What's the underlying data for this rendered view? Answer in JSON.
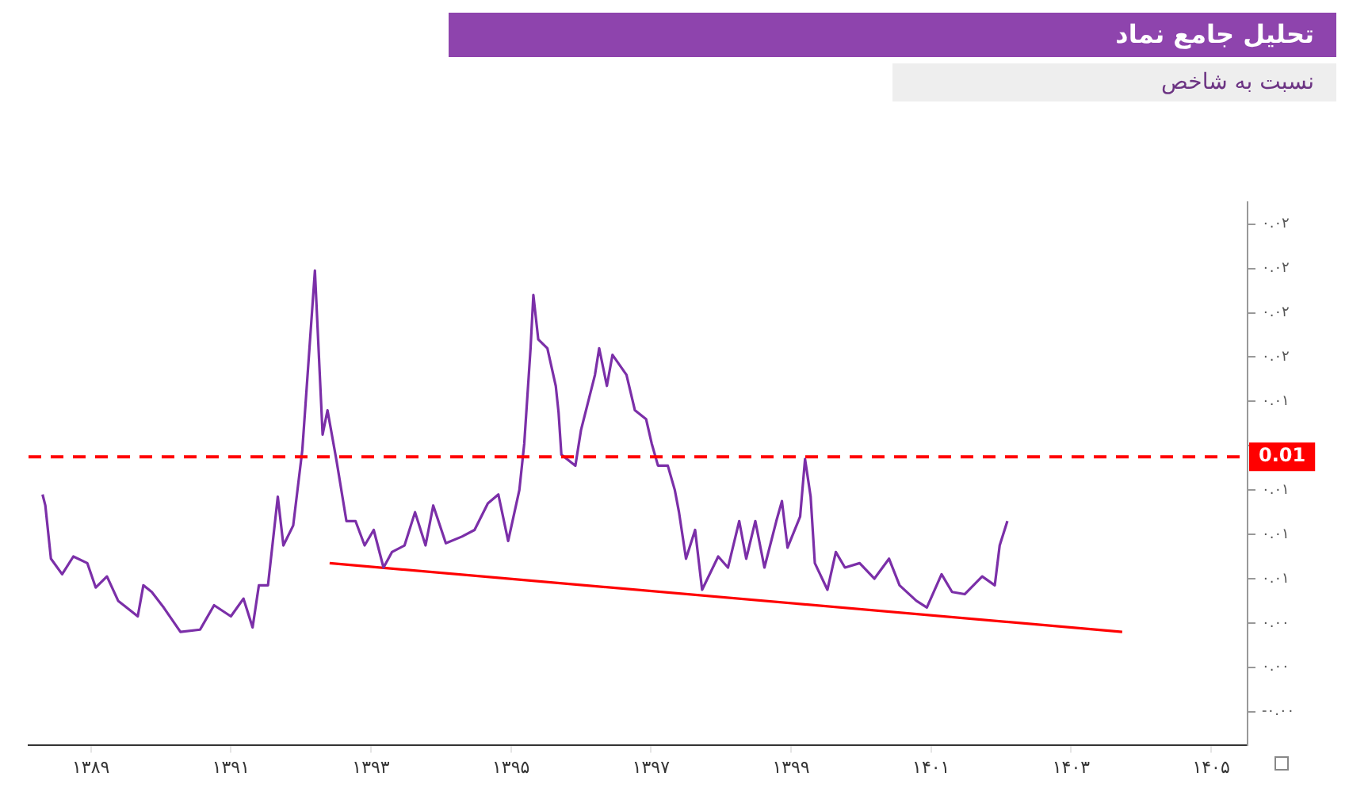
{
  "chart_data": {
    "type": "line",
    "title": "تحلیل جامع نماد",
    "subtitle": "نسبت به شاخص",
    "xlim": [
      1388.11,
      1405.52
    ],
    "xticks": [
      {
        "value": 1389,
        "label": "۱۳۸۹"
      },
      {
        "value": 1391,
        "label": "۱۳۹۱"
      },
      {
        "value": 1393,
        "label": "۱۳۹۳"
      },
      {
        "value": 1395,
        "label": "۱۳۹۵"
      },
      {
        "value": 1397,
        "label": "۱۳۹۷"
      },
      {
        "value": 1399,
        "label": "۱۳۹۹"
      },
      {
        "value": 1401,
        "label": "۱۴۰۱"
      },
      {
        "value": 1403,
        "label": "۱۴۰۳"
      },
      {
        "value": 1405,
        "label": "۱۴۰۵"
      }
    ],
    "ylim": [
      -0.0025,
      0.022
    ],
    "yticks": [
      {
        "value": -0.001,
        "label": "-۰.۰۰"
      },
      {
        "value": 0.001,
        "label": "۰.۰۰"
      },
      {
        "value": 0.003,
        "label": "۰.۰۰"
      },
      {
        "value": 0.005,
        "label": "۰.۰۱"
      },
      {
        "value": 0.007,
        "label": "۰.۰۱"
      },
      {
        "value": 0.009,
        "label": "۰.۰۱"
      },
      {
        "value": 0.011,
        "label": null
      },
      {
        "value": 0.013,
        "label": "۰.۰۱"
      },
      {
        "value": 0.015,
        "label": "۰.۰۲"
      },
      {
        "value": 0.017,
        "label": "۰.۰۲"
      },
      {
        "value": 0.019,
        "label": "۰.۰۲"
      },
      {
        "value": 0.021,
        "label": "۰.۰۲"
      }
    ],
    "grid": false,
    "legend": false,
    "marker": "none",
    "line_style": "solid",
    "ref_lines": [
      {
        "axis": "y",
        "value": 0.0105,
        "label": "0.01",
        "color": "#ff0000",
        "line_style": "dashed"
      }
    ],
    "series": [
      {
        "color": "#7b2fa8",
        "x": [
          1388.31,
          1388.35,
          1388.43,
          1388.59,
          1388.75,
          1388.95,
          1389.07,
          1389.23,
          1389.39,
          1389.67,
          1389.75,
          1389.87,
          1390.04,
          1390.28,
          1390.56,
          1390.76,
          1391.0,
          1391.18,
          1391.31,
          1391.4,
          1391.53,
          1391.67,
          1391.75,
          1391.89,
          1392.02,
          1392.2,
          1392.31,
          1392.38,
          1392.51,
          1392.65,
          1392.78,
          1392.91,
          1393.04,
          1393.18,
          1393.3,
          1393.48,
          1393.63,
          1393.78,
          1393.89,
          1394.07,
          1394.3,
          1394.48,
          1394.67,
          1394.82,
          1394.96,
          1395.12,
          1395.19,
          1395.28,
          1395.32,
          1395.39,
          1395.52,
          1395.64,
          1395.68,
          1395.72,
          1395.92,
          1396.0,
          1396.2,
          1396.26,
          1396.37,
          1396.45,
          1396.65,
          1396.77,
          1396.93,
          1397.01,
          1397.1,
          1397.24,
          1397.34,
          1397.4,
          1397.5,
          1397.63,
          1397.73,
          1397.96,
          1398.1,
          1398.26,
          1398.36,
          1398.49,
          1398.62,
          1398.79,
          1398.87,
          1398.95,
          1399.13,
          1399.2,
          1399.28,
          1399.34,
          1399.52,
          1399.64,
          1399.77,
          1399.98,
          1400.19,
          1400.4,
          1400.55,
          1400.79,
          1400.94,
          1401.15,
          1401.3,
          1401.48,
          1401.73,
          1401.91,
          1401.98,
          1402.09
        ],
        "values": [
          0.0088,
          0.0083,
          0.0059,
          0.0052,
          0.006,
          0.0057,
          0.0046,
          0.0051,
          0.004,
          0.0033,
          0.0047,
          0.0044,
          0.0037,
          0.0026,
          0.0027,
          0.0038,
          0.0033,
          0.0041,
          0.0028,
          0.0047,
          0.0047,
          0.0087,
          0.0065,
          0.0074,
          0.0108,
          0.0189,
          0.0115,
          0.0126,
          0.0103,
          0.0076,
          0.0076,
          0.0065,
          0.0072,
          0.0055,
          0.0062,
          0.0065,
          0.008,
          0.0065,
          0.0083,
          0.0066,
          0.0069,
          0.0072,
          0.0084,
          0.0088,
          0.0067,
          0.009,
          0.0111,
          0.0154,
          0.0178,
          0.0158,
          0.0154,
          0.0137,
          0.0125,
          0.0106,
          0.0101,
          0.0117,
          0.0142,
          0.0154,
          0.0137,
          0.0151,
          0.0142,
          0.0126,
          0.0122,
          0.0111,
          0.0101,
          0.0101,
          0.009,
          0.008,
          0.0059,
          0.0072,
          0.0045,
          0.006,
          0.0055,
          0.0076,
          0.0059,
          0.0076,
          0.0055,
          0.0076,
          0.0085,
          0.0064,
          0.0078,
          0.0104,
          0.0087,
          0.0057,
          0.0045,
          0.0062,
          0.0055,
          0.0057,
          0.005,
          0.0059,
          0.0047,
          0.004,
          0.0037,
          0.0052,
          0.0044,
          0.0043,
          0.0051,
          0.0047,
          0.0065,
          0.0076
        ]
      },
      {
        "color": "#ff0000",
        "x": [
          1392.41,
          1403.73
        ],
        "values": [
          0.0057,
          0.0026
        ]
      }
    ]
  }
}
